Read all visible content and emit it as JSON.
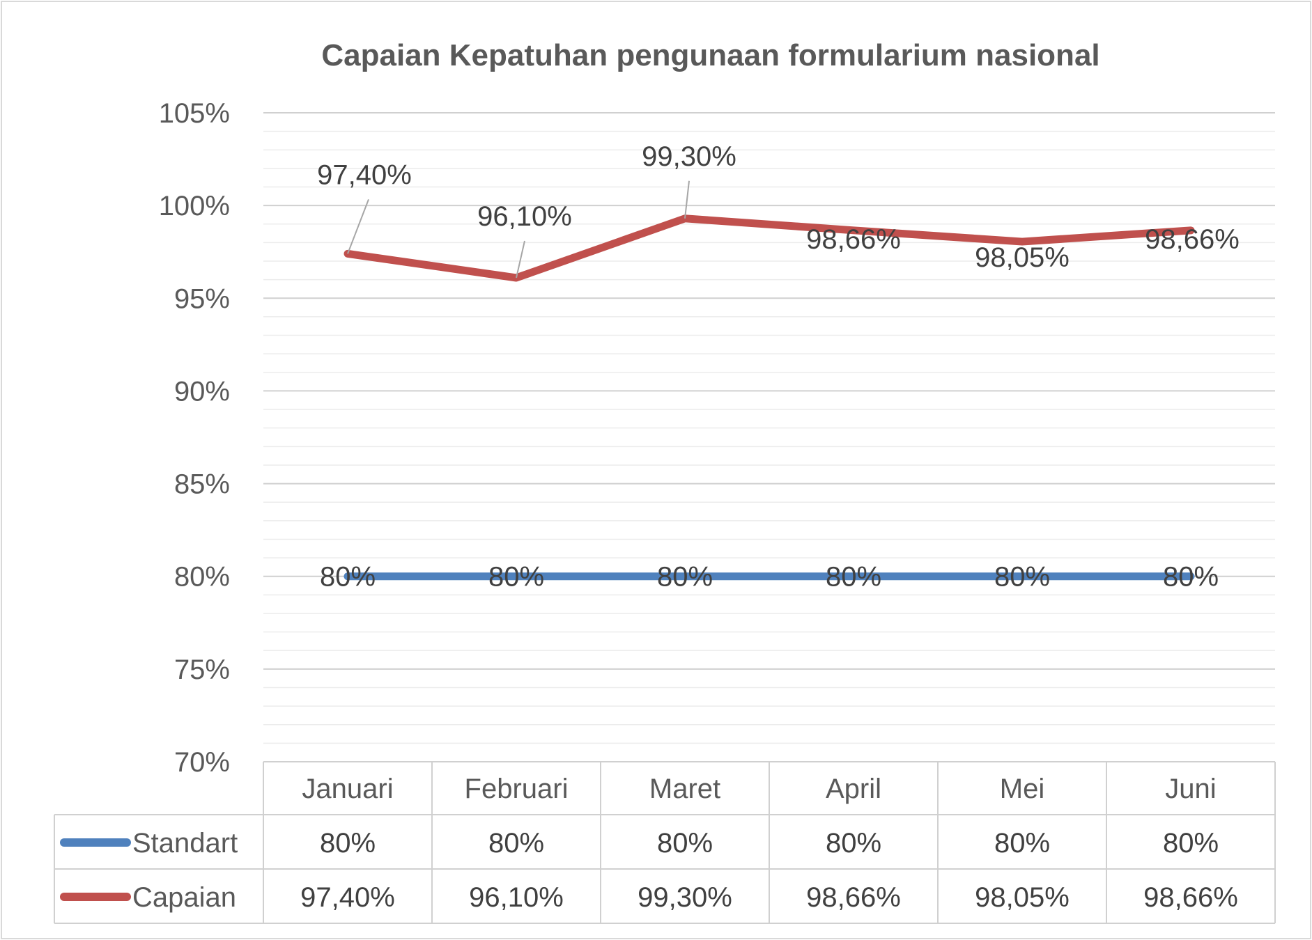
{
  "chart_data": {
    "type": "line",
    "title": "Capaian Kepatuhan pengunaan formularium nasional",
    "xlabel": "",
    "ylabel": "",
    "categories": [
      "Januari",
      "Februari",
      "Maret",
      "April",
      "Mei",
      "Juni"
    ],
    "ylim": [
      70,
      105
    ],
    "y_tick_labels": [
      "105%",
      "100%",
      "95%",
      "90%",
      "85%",
      "80%",
      "75%",
      "70%"
    ],
    "grid": true,
    "legend": "data-table",
    "series": [
      {
        "name": "Standart",
        "color": "#4F81BD",
        "values": [
          80,
          80,
          80,
          80,
          80,
          80
        ],
        "labels": [
          "80%",
          "80%",
          "80%",
          "80%",
          "80%",
          "80%"
        ]
      },
      {
        "name": "Capaian",
        "color": "#C0504D",
        "values": [
          97.4,
          96.1,
          99.3,
          98.66,
          98.05,
          98.66
        ],
        "labels": [
          "97,40%",
          "96,10%",
          "99,30%",
          "98,66%",
          "98,05%",
          "98,66%"
        ]
      }
    ]
  }
}
